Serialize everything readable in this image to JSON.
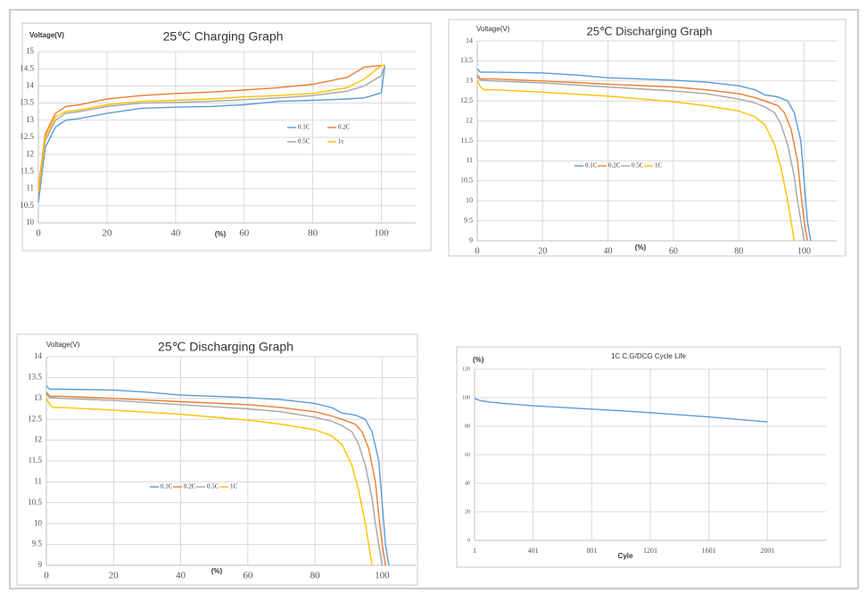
{
  "chart_data": [
    {
      "type": "line",
      "title": "25℃ Charging Graph",
      "y_label": "Voltage(V)",
      "x_label": "(%)",
      "xlim": [
        0,
        110
      ],
      "xticks": [
        0,
        20,
        40,
        60,
        80,
        100
      ],
      "ylim": [
        10,
        15
      ],
      "yticks": [
        10,
        10.5,
        11,
        11.5,
        12,
        12.5,
        13,
        13.5,
        14,
        14.5,
        15
      ],
      "grid": true,
      "legend": "center-right",
      "legend_columns": 2,
      "series": [
        {
          "name": "0.1C",
          "color": "#5b9bd5",
          "x": [
            0,
            2,
            5,
            8,
            12,
            20,
            30,
            40,
            50,
            60,
            70,
            80,
            90,
            95,
            100,
            101
          ],
          "values": [
            10.6,
            12.2,
            12.8,
            13.0,
            13.05,
            13.2,
            13.35,
            13.38,
            13.4,
            13.45,
            13.55,
            13.58,
            13.62,
            13.65,
            13.8,
            14.6
          ]
        },
        {
          "name": "0.2C",
          "color": "#ed7d31",
          "x": [
            0,
            2,
            5,
            8,
            12,
            20,
            30,
            40,
            50,
            60,
            70,
            80,
            90,
            95,
            100,
            101
          ],
          "values": [
            11.0,
            12.6,
            13.2,
            13.4,
            13.45,
            13.62,
            13.72,
            13.78,
            13.82,
            13.88,
            13.95,
            14.05,
            14.25,
            14.55,
            14.6,
            14.6
          ]
        },
        {
          "name": "0.5C",
          "color": "#a5a5a5",
          "x": [
            0,
            2,
            5,
            8,
            12,
            20,
            30,
            40,
            50,
            60,
            70,
            80,
            90,
            95,
            100,
            101
          ],
          "values": [
            10.8,
            12.4,
            13.0,
            13.2,
            13.25,
            13.4,
            13.5,
            13.52,
            13.55,
            13.6,
            13.65,
            13.72,
            13.85,
            14.0,
            14.3,
            14.6
          ]
        },
        {
          "name": "1c",
          "color": "#ffc000",
          "x": [
            0,
            2,
            5,
            8,
            12,
            20,
            30,
            40,
            50,
            60,
            70,
            80,
            90,
            95,
            100,
            101
          ],
          "values": [
            10.9,
            12.5,
            13.1,
            13.25,
            13.3,
            13.45,
            13.55,
            13.58,
            13.62,
            13.68,
            13.72,
            13.78,
            13.95,
            14.2,
            14.6,
            14.6
          ]
        }
      ]
    },
    {
      "type": "line",
      "title": "25℃ Discharging Graph",
      "y_label": "Voltage(V)",
      "x_label": "(%)",
      "xlim": [
        0,
        110
      ],
      "xticks": [
        0,
        20,
        40,
        60,
        80,
        100
      ],
      "ylim": [
        9,
        14
      ],
      "yticks": [
        9,
        9.5,
        10,
        10.5,
        11,
        11.5,
        12,
        12.5,
        13,
        13.5,
        14
      ],
      "grid": true,
      "legend": "center-left",
      "legend_columns": 4,
      "series": [
        {
          "name": "0.1C",
          "color": "#5b9bd5",
          "x": [
            0,
            1,
            5,
            20,
            30,
            40,
            60,
            70,
            80,
            85,
            88,
            92,
            95,
            97,
            99,
            100,
            101,
            102
          ],
          "values": [
            13.3,
            13.22,
            13.22,
            13.2,
            13.15,
            13.08,
            13.02,
            12.97,
            12.88,
            12.78,
            12.65,
            12.6,
            12.5,
            12.2,
            11.5,
            10.5,
            9.5,
            9
          ]
        },
        {
          "name": "0.2C",
          "color": "#ed7d31",
          "x": [
            0,
            1,
            5,
            20,
            40,
            60,
            70,
            80,
            85,
            88,
            92,
            94,
            96,
            98,
            99,
            100,
            101
          ],
          "values": [
            13.15,
            13.05,
            13.05,
            13.0,
            12.92,
            12.85,
            12.78,
            12.68,
            12.58,
            12.5,
            12.38,
            12.2,
            11.8,
            11,
            10.2,
            9.5,
            9
          ]
        },
        {
          "name": "0.5C",
          "color": "#a5a5a5",
          "x": [
            0,
            1,
            5,
            20,
            40,
            60,
            70,
            80,
            85,
            88,
            91,
            93,
            95,
            97,
            98,
            99,
            100
          ],
          "values": [
            13.1,
            13.02,
            13.0,
            12.95,
            12.85,
            12.75,
            12.68,
            12.55,
            12.45,
            12.35,
            12.2,
            11.9,
            11.4,
            10.6,
            10,
            9.5,
            9
          ]
        },
        {
          "name": "1C",
          "color": "#ffc000",
          "x": [
            0,
            1,
            2,
            5,
            20,
            40,
            60,
            70,
            80,
            85,
            88,
            91,
            93,
            95,
            96,
            97
          ],
          "values": [
            13.0,
            12.85,
            12.78,
            12.78,
            12.72,
            12.62,
            12.48,
            12.38,
            12.25,
            12.1,
            11.9,
            11.4,
            10.8,
            10,
            9.5,
            9
          ]
        }
      ]
    },
    {
      "type": "line",
      "title": "25℃ Discharging Graph",
      "y_label": "Voltage(V)",
      "x_label": "(%)",
      "xlim": [
        0,
        110
      ],
      "xticks": [
        0,
        20,
        40,
        60,
        80,
        100
      ],
      "ylim": [
        9,
        14
      ],
      "yticks": [
        9,
        9.5,
        10,
        10.5,
        11,
        11.5,
        12,
        12.5,
        13,
        13.5,
        14
      ],
      "grid": true,
      "legend": "center-left",
      "legend_columns": 4,
      "series": [
        {
          "name": "0.1C",
          "color": "#5b9bd5",
          "x": [
            0,
            1,
            5,
            20,
            30,
            40,
            60,
            70,
            80,
            85,
            88,
            92,
            95,
            97,
            99,
            100,
            101,
            102
          ],
          "values": [
            13.3,
            13.22,
            13.22,
            13.2,
            13.15,
            13.08,
            13.02,
            12.97,
            12.88,
            12.78,
            12.65,
            12.6,
            12.5,
            12.2,
            11.5,
            10.5,
            9.5,
            9
          ]
        },
        {
          "name": "0.2C",
          "color": "#ed7d31",
          "x": [
            0,
            1,
            5,
            20,
            40,
            60,
            70,
            80,
            85,
            88,
            92,
            94,
            96,
            98,
            99,
            100,
            101
          ],
          "values": [
            13.15,
            13.05,
            13.05,
            13.0,
            12.92,
            12.85,
            12.78,
            12.68,
            12.58,
            12.5,
            12.38,
            12.2,
            11.8,
            11,
            10.2,
            9.5,
            9
          ]
        },
        {
          "name": "0.5C",
          "color": "#a5a5a5",
          "x": [
            0,
            1,
            5,
            20,
            40,
            60,
            70,
            80,
            85,
            88,
            91,
            93,
            95,
            97,
            98,
            99,
            100
          ],
          "values": [
            13.1,
            13.02,
            13.0,
            12.95,
            12.85,
            12.75,
            12.68,
            12.55,
            12.45,
            12.35,
            12.2,
            11.9,
            11.4,
            10.6,
            10,
            9.5,
            9
          ]
        },
        {
          "name": "1C",
          "color": "#ffc000",
          "x": [
            0,
            1,
            2,
            5,
            20,
            40,
            60,
            70,
            80,
            85,
            88,
            91,
            93,
            95,
            96,
            97
          ],
          "values": [
            13.0,
            12.85,
            12.78,
            12.78,
            12.72,
            12.62,
            12.48,
            12.38,
            12.25,
            12.1,
            11.9,
            11.4,
            10.8,
            10,
            9.5,
            9
          ]
        }
      ]
    },
    {
      "type": "line",
      "title": "1C C.G/DCG Cycle Life",
      "y_label": "(%)",
      "x_label": "Cyle",
      "xlim": [
        1,
        2401
      ],
      "xticks": [
        1,
        401,
        801,
        1201,
        1601,
        2001
      ],
      "ylim": [
        0,
        120
      ],
      "yticks": [
        0,
        20,
        40,
        60,
        80,
        100,
        120
      ],
      "grid": true,
      "series": [
        {
          "color": "#5b9bd5",
          "x": [
            1,
            20,
            50,
            100,
            200,
            400,
            600,
            800,
            1000,
            1200,
            1400,
            1600,
            1800,
            2001
          ],
          "values": [
            99.5,
            98.6,
            97.8,
            97,
            96,
            94.3,
            93.2,
            92,
            90.8,
            89.5,
            88,
            86.5,
            84.8,
            83
          ]
        }
      ]
    }
  ]
}
